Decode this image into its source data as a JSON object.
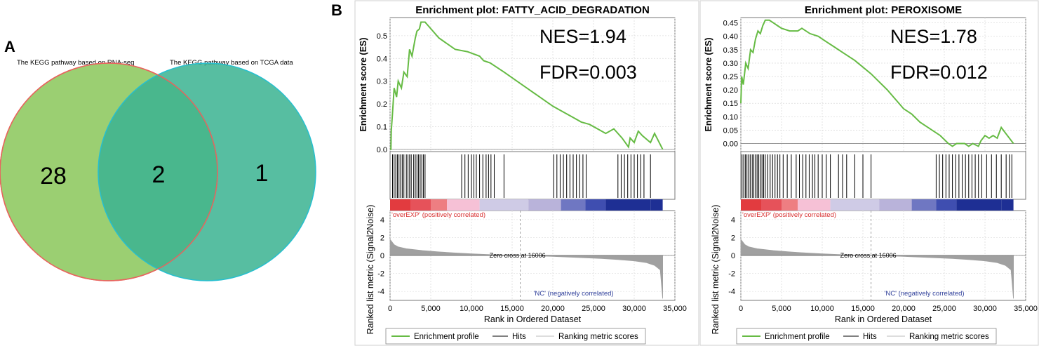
{
  "panel_a": {
    "letter": "A",
    "left_title": "The KEGG pathway based on RNA-seq",
    "right_title": "The KEGG pathway based on TCGA data",
    "left_only": "28",
    "overlap": "2",
    "right_only": "1",
    "colors": {
      "left_fill": "#9bcf72",
      "left_stroke": "#e8645e",
      "right_fill": "#3bb391",
      "right_stroke": "#26bfcf"
    }
  },
  "panel_b": {
    "letter": "B",
    "y_label_top": "Enrichment score (ES)",
    "y_label_bottom": "Ranked list metric (Signal2Noise)",
    "x_label": "Rank in Ordered Dataset",
    "pos_label": "'overEXP' (positively correlated)",
    "neg_label": "'NC' (negatively correlated)",
    "zero_cross": "Zero cross at 16006",
    "legend": [
      "Enrichment profile",
      "Hits",
      "Ranking metric scores"
    ],
    "colors": {
      "es_line": "#66bb44",
      "hits": "#000000",
      "metric": "#a0a0a0",
      "pos": "#d83030",
      "neg": "#2f3f9a"
    },
    "heat_colors": [
      "#e23b3f",
      "#e6525a",
      "#ee7e82",
      "#f6c1d6",
      "#cfcbe6",
      "#b9b3da",
      "#6f77c2",
      "#3f4eb0",
      "#1e2f94"
    ]
  },
  "chart_data": [
    {
      "type": "line",
      "title": "Enrichment plot: FATTY_ACID_DEGRADATION",
      "xlabel": "Rank in Ordered Dataset",
      "ylabel": "Enrichment score (ES)",
      "xlim": [
        0,
        35000
      ],
      "ylim": [
        -0.01,
        0.58
      ],
      "x_ticks": [
        "0",
        "5,000",
        "10,000",
        "15,000",
        "20,000",
        "25,000",
        "30,000",
        "35,000"
      ],
      "y_ticks": [
        "0.0",
        "0.1",
        "0.2",
        "0.3",
        "0.4",
        "0.5"
      ],
      "nes": "NES=1.94",
      "fdr": "FDR=0.003",
      "es_points": [
        [
          0,
          0
        ],
        [
          100,
          0
        ],
        [
          150,
          0.08
        ],
        [
          300,
          0.16
        ],
        [
          500,
          0.27
        ],
        [
          800,
          0.23
        ],
        [
          1000,
          0.3
        ],
        [
          1400,
          0.27
        ],
        [
          1700,
          0.34
        ],
        [
          2100,
          0.32
        ],
        [
          2400,
          0.44
        ],
        [
          2700,
          0.41
        ],
        [
          2900,
          0.45
        ],
        [
          3100,
          0.49
        ],
        [
          3300,
          0.52
        ],
        [
          3600,
          0.53
        ],
        [
          3800,
          0.56
        ],
        [
          4100,
          0.56
        ],
        [
          4300,
          0.56
        ],
        [
          6000,
          0.49
        ],
        [
          8000,
          0.44
        ],
        [
          9500,
          0.43
        ],
        [
          11000,
          0.41
        ],
        [
          11500,
          0.39
        ],
        [
          12300,
          0.38
        ],
        [
          14000,
          0.34
        ],
        [
          16000,
          0.29
        ],
        [
          18000,
          0.24
        ],
        [
          20000,
          0.19
        ],
        [
          21000,
          0.17
        ],
        [
          22500,
          0.14
        ],
        [
          23500,
          0.12
        ],
        [
          24500,
          0.11
        ],
        [
          25500,
          0.09
        ],
        [
          26500,
          0.07
        ],
        [
          27500,
          0.09
        ],
        [
          28500,
          0.05
        ],
        [
          29300,
          0.01
        ],
        [
          29500,
          0.05
        ],
        [
          30000,
          0.03
        ],
        [
          30500,
          0.08
        ],
        [
          31000,
          0.06
        ],
        [
          32000,
          0.03
        ],
        [
          32500,
          0.07
        ],
        [
          33500,
          0.0
        ]
      ],
      "hits": [
        300,
        500,
        700,
        900,
        1100,
        1300,
        1500,
        1700,
        2000,
        2200,
        2400,
        2600,
        2900,
        3100,
        3300,
        3500,
        3700,
        3900,
        4100,
        4300,
        8800,
        9200,
        9600,
        10000,
        10300,
        10600,
        11000,
        11400,
        11800,
        12100,
        12400,
        12800,
        14000,
        20100,
        20500,
        20900,
        21300,
        21700,
        22100,
        22500,
        22900,
        23300,
        23700,
        24100,
        28000,
        28400,
        28800,
        29200,
        29600,
        30000,
        30400,
        30800,
        31200,
        32000
      ],
      "metric_ylim": [
        -5,
        5
      ],
      "metric_ticks": [
        "4",
        "2",
        "0",
        "-2",
        "-4"
      ],
      "metric_points": [
        [
          0,
          1.8
        ],
        [
          500,
          1.2
        ],
        [
          1000,
          0.95
        ],
        [
          2000,
          0.75
        ],
        [
          4000,
          0.55
        ],
        [
          6000,
          0.4
        ],
        [
          8000,
          0.28
        ],
        [
          10000,
          0.18
        ],
        [
          12000,
          0.11
        ],
        [
          14000,
          0.05
        ],
        [
          16006,
          0
        ],
        [
          18000,
          -0.05
        ],
        [
          20000,
          -0.11
        ],
        [
          22000,
          -0.18
        ],
        [
          24000,
          -0.26
        ],
        [
          26000,
          -0.34
        ],
        [
          28000,
          -0.45
        ],
        [
          30000,
          -0.6
        ],
        [
          31500,
          -0.8
        ],
        [
          32500,
          -1.1
        ],
        [
          33200,
          -1.6
        ],
        [
          33500,
          -4.8
        ]
      ],
      "heat_edges": [
        0,
        2500,
        5000,
        7000,
        11000,
        17000,
        21000,
        24000,
        26500,
        32000,
        33500
      ]
    },
    {
      "type": "line",
      "title": "Enrichment plot: PEROXISOME",
      "xlabel": "Rank in Ordered Dataset",
      "ylabel": "Enrichment score (ES)",
      "xlim": [
        0,
        35000
      ],
      "ylim": [
        -0.03,
        0.47
      ],
      "x_ticks": [
        "0",
        "5,000",
        "10,000",
        "15,000",
        "20,000",
        "25,000",
        "30,000",
        "35,000"
      ],
      "y_ticks": [
        "0.00",
        "0.05",
        "0.10",
        "0.15",
        "0.20",
        "0.25",
        "0.30",
        "0.35",
        "0.40",
        "0.45"
      ],
      "nes": "NES=1.78",
      "fdr": "FDR=0.012",
      "es_points": [
        [
          0,
          0.15
        ],
        [
          100,
          0.25
        ],
        [
          300,
          0.22
        ],
        [
          600,
          0.3
        ],
        [
          900,
          0.28
        ],
        [
          1200,
          0.35
        ],
        [
          1500,
          0.34
        ],
        [
          1800,
          0.39
        ],
        [
          2100,
          0.42
        ],
        [
          2400,
          0.41
        ],
        [
          2700,
          0.44
        ],
        [
          3000,
          0.46
        ],
        [
          3500,
          0.46
        ],
        [
          4000,
          0.45
        ],
        [
          4500,
          0.44
        ],
        [
          5000,
          0.43
        ],
        [
          6000,
          0.42
        ],
        [
          7000,
          0.42
        ],
        [
          7500,
          0.43
        ],
        [
          8500,
          0.41
        ],
        [
          9500,
          0.4
        ],
        [
          10500,
          0.38
        ],
        [
          11500,
          0.36
        ],
        [
          12500,
          0.34
        ],
        [
          14000,
          0.31
        ],
        [
          16000,
          0.26
        ],
        [
          18000,
          0.2
        ],
        [
          20000,
          0.13
        ],
        [
          21000,
          0.11
        ],
        [
          22000,
          0.08
        ],
        [
          23500,
          0.05
        ],
        [
          24500,
          0.03
        ],
        [
          25500,
          0.0
        ],
        [
          26000,
          -0.01
        ],
        [
          26500,
          0.0
        ],
        [
          27500,
          0.0
        ],
        [
          28000,
          -0.01
        ],
        [
          28500,
          0.0
        ],
        [
          29200,
          -0.01
        ],
        [
          29500,
          0.01
        ],
        [
          30000,
          0.03
        ],
        [
          30500,
          0.02
        ],
        [
          31000,
          0.03
        ],
        [
          31500,
          0.02
        ],
        [
          32000,
          0.06
        ],
        [
          32500,
          0.04
        ],
        [
          33500,
          0.0
        ]
      ],
      "hits": [
        150,
        350,
        550,
        750,
        950,
        1150,
        1400,
        1600,
        1800,
        2000,
        2200,
        2400,
        2600,
        2800,
        3000,
        3300,
        3600,
        3900,
        4200,
        4500,
        4800,
        5200,
        5700,
        6200,
        6800,
        7200,
        7600,
        8000,
        8400,
        8800,
        9100,
        9500,
        10000,
        10500,
        11000,
        12000,
        12500,
        13000,
        14000,
        15000,
        16000,
        24000,
        24400,
        24800,
        25200,
        25600,
        26000,
        26400,
        26800,
        27200,
        27600,
        28000,
        28400,
        28800,
        29200,
        29600,
        30200,
        30800,
        31400,
        32000,
        32600,
        33000,
        33300
      ],
      "metric_ylim": [
        -5,
        5
      ],
      "metric_ticks": [
        "4",
        "2",
        "0",
        "-2",
        "-4"
      ],
      "metric_points": [
        [
          0,
          1.8
        ],
        [
          500,
          1.2
        ],
        [
          1000,
          0.95
        ],
        [
          2000,
          0.75
        ],
        [
          4000,
          0.55
        ],
        [
          6000,
          0.4
        ],
        [
          8000,
          0.28
        ],
        [
          10000,
          0.18
        ],
        [
          12000,
          0.11
        ],
        [
          14000,
          0.05
        ],
        [
          16006,
          0
        ],
        [
          18000,
          -0.05
        ],
        [
          20000,
          -0.11
        ],
        [
          22000,
          -0.18
        ],
        [
          24000,
          -0.26
        ],
        [
          26000,
          -0.34
        ],
        [
          28000,
          -0.45
        ],
        [
          30000,
          -0.6
        ],
        [
          31500,
          -0.8
        ],
        [
          32500,
          -1.1
        ],
        [
          33200,
          -1.6
        ],
        [
          33500,
          -4.8
        ]
      ],
      "heat_edges": [
        0,
        2500,
        5000,
        7000,
        11000,
        17000,
        21000,
        24000,
        26500,
        32000,
        33500
      ]
    }
  ]
}
